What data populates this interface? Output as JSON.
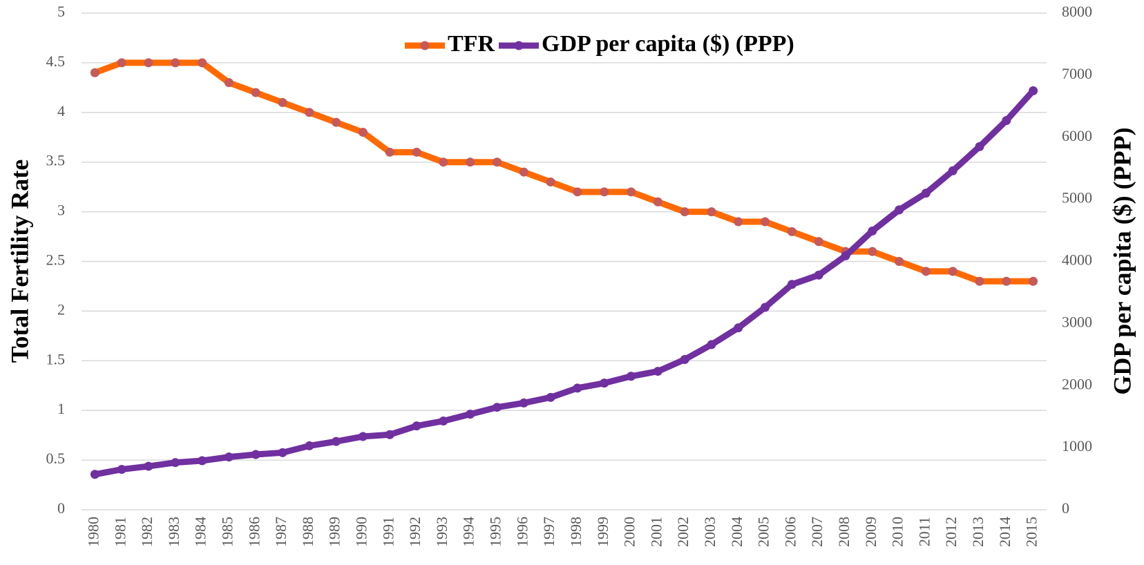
{
  "chart_data": {
    "type": "line",
    "categories": [
      "1980",
      "1981",
      "1982",
      "1983",
      "1984",
      "1985",
      "1986",
      "1987",
      "1988",
      "1989",
      "1990",
      "1991",
      "1992",
      "1993",
      "1994",
      "1995",
      "1996",
      "1997",
      "1998",
      "1999",
      "2000",
      "2001",
      "2002",
      "2003",
      "2004",
      "2005",
      "2006",
      "2007",
      "2008",
      "2009",
      "2010",
      "2011",
      "2012",
      "2013",
      "2014",
      "2015"
    ],
    "series": [
      {
        "name": "TFR",
        "color": "#ff6a00",
        "marker_color": "#c55a5a",
        "values": [
          4.4,
          4.5,
          4.5,
          4.5,
          4.5,
          4.3,
          4.2,
          4.1,
          4.0,
          3.9,
          3.8,
          3.6,
          3.6,
          3.5,
          3.5,
          3.5,
          3.4,
          3.3,
          3.2,
          3.2,
          3.2,
          3.1,
          3.0,
          3.0,
          2.9,
          2.9,
          2.8,
          2.7,
          2.6,
          2.6,
          2.5,
          2.4,
          2.4,
          2.3,
          2.3,
          2.3
        ]
      },
      {
        "name": "GDP per capita ($) (PPP)",
        "color": "#7030a0",
        "marker_color": "#7030a0",
        "axis": "y2",
        "values": [
          570,
          650,
          700,
          760,
          790,
          850,
          890,
          920,
          1030,
          1100,
          1180,
          1210,
          1350,
          1430,
          1540,
          1650,
          1720,
          1810,
          1960,
          2040,
          2150,
          2230,
          2420,
          2660,
          2930,
          3260,
          3630,
          3780,
          4090,
          4490,
          4830,
          5100,
          5460,
          5850,
          6270,
          6750
        ]
      }
    ],
    "ylabel": "Total Fertility Rate",
    "y2label": "GDP per capita ($) (PPP)",
    "ylim": [
      0,
      5
    ],
    "yticks": [
      0,
      0.5,
      1,
      1.5,
      2,
      2.5,
      3,
      3.5,
      4,
      4.5,
      5
    ],
    "y2lim": [
      0,
      8000
    ],
    "y2ticks": [
      0,
      1000,
      2000,
      3000,
      4000,
      5000,
      6000,
      7000,
      8000
    ],
    "grid": true,
    "legend": "top"
  }
}
